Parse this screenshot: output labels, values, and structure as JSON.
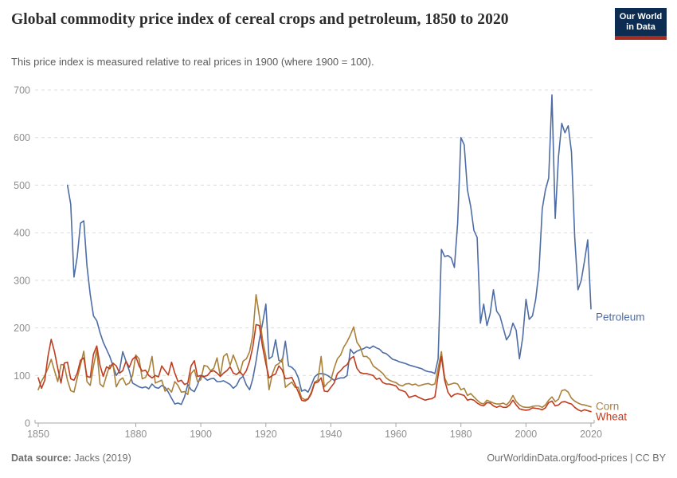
{
  "header": {
    "title": "Global commodity price index of cereal crops and petroleum, 1850 to 2020",
    "subtitle": "This price index is measured relative to real prices in 1900 (where 1900 = 100).",
    "logo": {
      "line1": "Our World",
      "line2": "in Data"
    }
  },
  "footer": {
    "datasource_label": "Data source:",
    "datasource_value": " Jacks (2019)",
    "credit": "OurWorldinData.org/food-prices | CC BY"
  },
  "colors": {
    "petroleum": "#4e6da5",
    "corn": "#aa8139",
    "wheat": "#bf3c1f",
    "gridline": "#dcdcdc",
    "axis": "#a6a6a6",
    "tick_label": "#8e8e8e",
    "logo_bg": "#0d2c51",
    "logo_bar": "#a52c21"
  },
  "chart_data": {
    "type": "line",
    "title": "Global commodity price index of cereal crops and petroleum, 1850 to 2020",
    "subtitle": "This price index is measured relative to real prices in 1900 (where 1900 = 100).",
    "xlabel": "",
    "ylabel": "",
    "xlim": [
      1850,
      2020
    ],
    "ylim": [
      0,
      700
    ],
    "x_ticks": [
      1850,
      1880,
      1900,
      1920,
      1940,
      1960,
      1980,
      2000,
      2020
    ],
    "y_ticks": [
      0,
      100,
      200,
      300,
      400,
      500,
      600,
      700
    ],
    "grid": "horizontal-dashed",
    "legend_position": "line-end-labels",
    "series": [
      {
        "name": "Petroleum",
        "color": "#4e6da5",
        "start_year": 1859,
        "label_dy": 15,
        "values": [
          500,
          460,
          307,
          350,
          420,
          425,
          330,
          270,
          225,
          215,
          190,
          170,
          155,
          140,
          120,
          100,
          110,
          150,
          130,
          110,
          84,
          80,
          76,
          74,
          76,
          72,
          82,
          75,
          73,
          79,
          75,
          65,
          52,
          40,
          42,
          39,
          55,
          81,
          70,
          66,
          80,
          100,
          96,
          90,
          93,
          94,
          87,
          87,
          89,
          85,
          81,
          73,
          79,
          93,
          98,
          80,
          70,
          93,
          130,
          175,
          210,
          250,
          135,
          140,
          175,
          132,
          128,
          172,
          120,
          117,
          110,
          95,
          67,
          70,
          65,
          80,
          97,
          103,
          104,
          103,
          100,
          95,
          90,
          93,
          95,
          95,
          100,
          155,
          146,
          151,
          154,
          156,
          160,
          157,
          162,
          158,
          155,
          148,
          146,
          140,
          134,
          132,
          129,
          127,
          125,
          122,
          120,
          118,
          116,
          114,
          110,
          108,
          107,
          104,
          135,
          365,
          350,
          352,
          347,
          327,
          420,
          600,
          585,
          490,
          455,
          405,
          390,
          210,
          250,
          205,
          230,
          280,
          235,
          225,
          200,
          175,
          185,
          210,
          195,
          135,
          180,
          260,
          218,
          225,
          260,
          320,
          450,
          490,
          515,
          690,
          430,
          560,
          630,
          610,
          625,
          570,
          390,
          280,
          300,
          340,
          385,
          240
        ]
      },
      {
        "name": "Corn",
        "color": "#aa8139",
        "start_year": 1850,
        "label_dy": 4,
        "values": [
          70,
          88,
          100,
          115,
          134,
          110,
          87,
          123,
          122,
          90,
          68,
          65,
          95,
          122,
          151,
          87,
          79,
          120,
          154,
          82,
          76,
          100,
          121,
          123,
          76,
          90,
          95,
          80,
          84,
          100,
          143,
          135,
          93,
          96,
          110,
          140,
          84,
          87,
          90,
          67,
          73,
          65,
          87,
          79,
          65,
          66,
          60,
          104,
          112,
          87,
          91,
          121,
          119,
          110,
          115,
          137,
          98,
          140,
          146,
          121,
          143,
          125,
          105,
          130,
          135,
          150,
          185,
          270,
          225,
          175,
          140,
          70,
          103,
          121,
          125,
          135,
          75,
          81,
          86,
          75,
          75,
          53,
          49,
          51,
          65,
          86,
          90,
          140,
          76,
          84,
          90,
          115,
          135,
          143,
          160,
          171,
          185,
          202,
          170,
          160,
          140,
          140,
          134,
          120,
          115,
          110,
          104,
          95,
          90,
          87,
          85,
          80,
          78,
          82,
          83,
          80,
          82,
          78,
          80,
          82,
          83,
          80,
          82,
          115,
          150,
          95,
          80,
          82,
          84,
          82,
          70,
          73,
          58,
          62,
          55,
          48,
          42,
          40,
          48,
          45,
          42,
          40,
          40,
          42,
          38,
          45,
          58,
          45,
          38,
          34,
          33,
          33,
          35,
          36,
          36,
          33,
          38,
          48,
          55,
          45,
          50,
          68,
          70,
          65,
          52,
          46,
          42,
          39,
          38,
          36,
          34
        ]
      },
      {
        "name": "Wheat",
        "color": "#bf3c1f",
        "start_year": 1850,
        "label_dy": 11,
        "values": [
          95,
          73,
          90,
          140,
          176,
          150,
          115,
          84,
          126,
          128,
          93,
          90,
          105,
          132,
          137,
          98,
          96,
          145,
          162,
          121,
          98,
          118,
          114,
          126,
          120,
          105,
          110,
          130,
          117,
          134,
          140,
          120,
          109,
          111,
          100,
          95,
          100,
          97,
          120,
          110,
          101,
          128,
          105,
          87,
          90,
          81,
          84,
          120,
          131,
          98,
          100,
          98,
          100,
          108,
          110,
          105,
          98,
          105,
          110,
          118,
          105,
          102,
          108,
          100,
          110,
          130,
          160,
          207,
          205,
          160,
          125,
          95,
          100,
          103,
          120,
          112,
          93,
          94,
          96,
          81,
          65,
          48,
          46,
          50,
          62,
          84,
          86,
          95,
          67,
          66,
          75,
          84,
          104,
          110,
          118,
          123,
          135,
          140,
          115,
          106,
          104,
          104,
          102,
          100,
          92,
          94,
          85,
          82,
          82,
          80,
          78,
          70,
          68,
          65,
          54,
          56,
          58,
          54,
          51,
          48,
          50,
          51,
          55,
          100,
          140,
          90,
          65,
          55,
          60,
          62,
          60,
          58,
          48,
          50,
          48,
          42,
          38,
          36,
          43,
          42,
          36,
          33,
          36,
          33,
          33,
          38,
          48,
          38,
          30,
          28,
          27,
          28,
          32,
          31,
          30,
          28,
          32,
          43,
          46,
          36,
          38,
          44,
          45,
          42,
          40,
          33,
          28,
          25,
          28,
          26,
          24
        ]
      }
    ]
  }
}
